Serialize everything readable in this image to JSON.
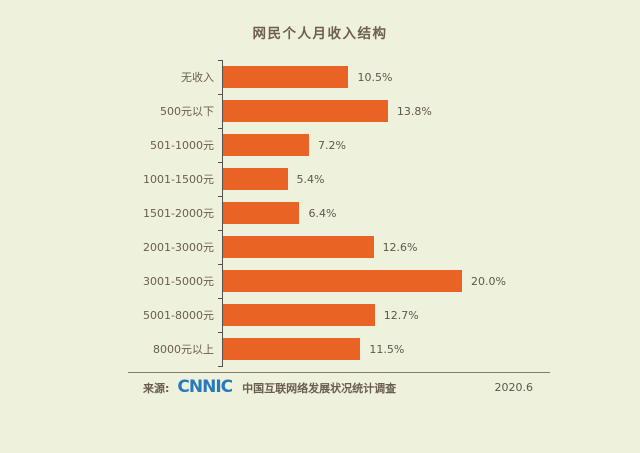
{
  "title": "网民个人月收入结构",
  "chart_data": {
    "type": "bar",
    "orientation": "horizontal",
    "title": "网民个人月收入结构",
    "categories": [
      "无收入",
      "500元以下",
      "501-1000元",
      "1001-1500元",
      "1501-2000元",
      "2001-3000元",
      "3001-5000元",
      "5001-8000元",
      "8000元以上"
    ],
    "values": [
      10.5,
      13.8,
      7.2,
      5.4,
      6.4,
      12.6,
      20.0,
      12.7,
      11.5
    ],
    "value_labels": [
      "10.5%",
      "13.8%",
      "7.2%",
      "5.4%",
      "6.4%",
      "12.6%",
      "20.0%",
      "12.7%",
      "11.5%"
    ],
    "unit": "%",
    "xlim": [
      0,
      21
    ],
    "grid": false,
    "legend": "none",
    "bar_color": "#E96325",
    "background_color": "#EEF1DC"
  },
  "footer": {
    "source_label": "来源:",
    "logo_text": "CNNIC",
    "source_text": "中国互联网络发展状况统计调查",
    "date": "2020.6"
  },
  "colors": {
    "background": "#EEF1DC",
    "bar": "#E96325",
    "title_text": "#6E5F4C",
    "label_text": "#6A5D50",
    "axis": "#55504A",
    "logo_blue": "#2979BE"
  }
}
